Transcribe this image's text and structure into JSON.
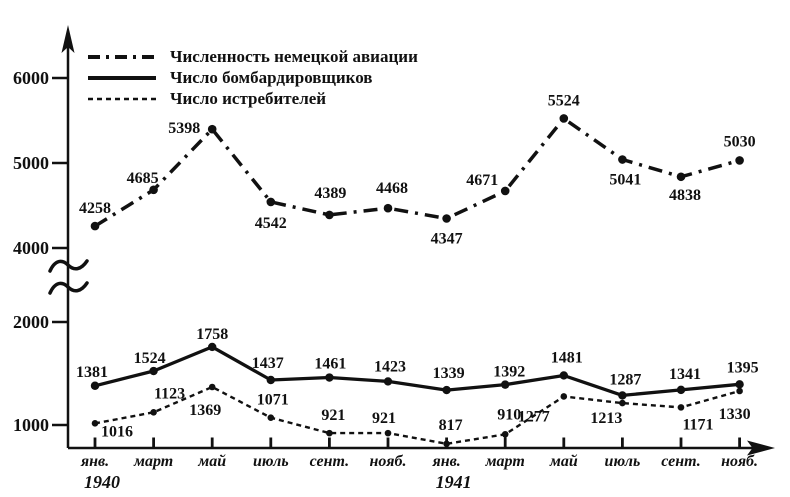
{
  "colors": {
    "ink": "#111111",
    "background": "#ffffff"
  },
  "chart_data": {
    "type": "line",
    "title": "",
    "xlabel": "",
    "ylabel": "",
    "grid": false,
    "legend_position": "top-left",
    "x_tick_labels": [
      "янв.",
      "март",
      "май",
      "июль",
      "сент.",
      "нояб.",
      "янв.",
      "март",
      "май",
      "июль",
      "сент.",
      "нояб."
    ],
    "x_years": [
      {
        "label": "1940",
        "tick_index": 0
      },
      {
        "label": "1941",
        "tick_index": 6
      }
    ],
    "y_axis": {
      "upper_ticks": [
        4000,
        5000,
        6000
      ],
      "lower_ticks": [
        1000,
        2000
      ],
      "axis_break_between": [
        2000,
        4000
      ]
    },
    "series": [
      {
        "name": "Численность немецкой авиации",
        "style": "dashdot",
        "segment": "upper",
        "values": [
          4258,
          4685,
          5398,
          4542,
          4389,
          4468,
          4347,
          4671,
          5524,
          5041,
          4838,
          5030
        ],
        "label_offsets": [
          [
            0,
            -13
          ],
          [
            -11,
            -7
          ],
          [
            -28,
            4
          ],
          [
            0,
            26
          ],
          [
            1,
            -17
          ],
          [
            4,
            -15
          ],
          [
            0,
            25
          ],
          [
            -23,
            -6
          ],
          [
            0,
            -13
          ],
          [
            3,
            25
          ],
          [
            4,
            23
          ],
          [
            0,
            -14
          ]
        ]
      },
      {
        "name": "Число бомбардировщиков",
        "style": "solid",
        "segment": "lower",
        "values": [
          1381,
          1524,
          1758,
          1437,
          1461,
          1423,
          1339,
          1392,
          1481,
          1287,
          1341,
          1395
        ],
        "label_offsets": [
          [
            -3,
            -9
          ],
          [
            -4,
            -8
          ],
          [
            0,
            -8
          ],
          [
            -3,
            -12
          ],
          [
            1,
            -9
          ],
          [
            2,
            -10
          ],
          [
            2,
            -12
          ],
          [
            4,
            -8
          ],
          [
            3,
            -13
          ],
          [
            3,
            -11
          ],
          [
            4,
            -11
          ],
          [
            3,
            -12
          ]
        ]
      },
      {
        "name": "Число истребителей",
        "style": "dashed",
        "segment": "lower",
        "values": [
          1016,
          1123,
          1369,
          1071,
          921,
          921,
          817,
          910,
          1277,
          1213,
          1171,
          1330
        ],
        "label_offsets": [
          [
            22,
            13
          ],
          [
            16,
            -14
          ],
          [
            -7,
            28
          ],
          [
            2,
            -13
          ],
          [
            4,
            -13
          ],
          [
            -4,
            -10
          ],
          [
            4,
            -14
          ],
          [
            4,
            -15
          ],
          [
            -30,
            25
          ],
          [
            -16,
            20
          ],
          [
            17,
            22
          ],
          [
            -5,
            28
          ]
        ]
      }
    ]
  }
}
